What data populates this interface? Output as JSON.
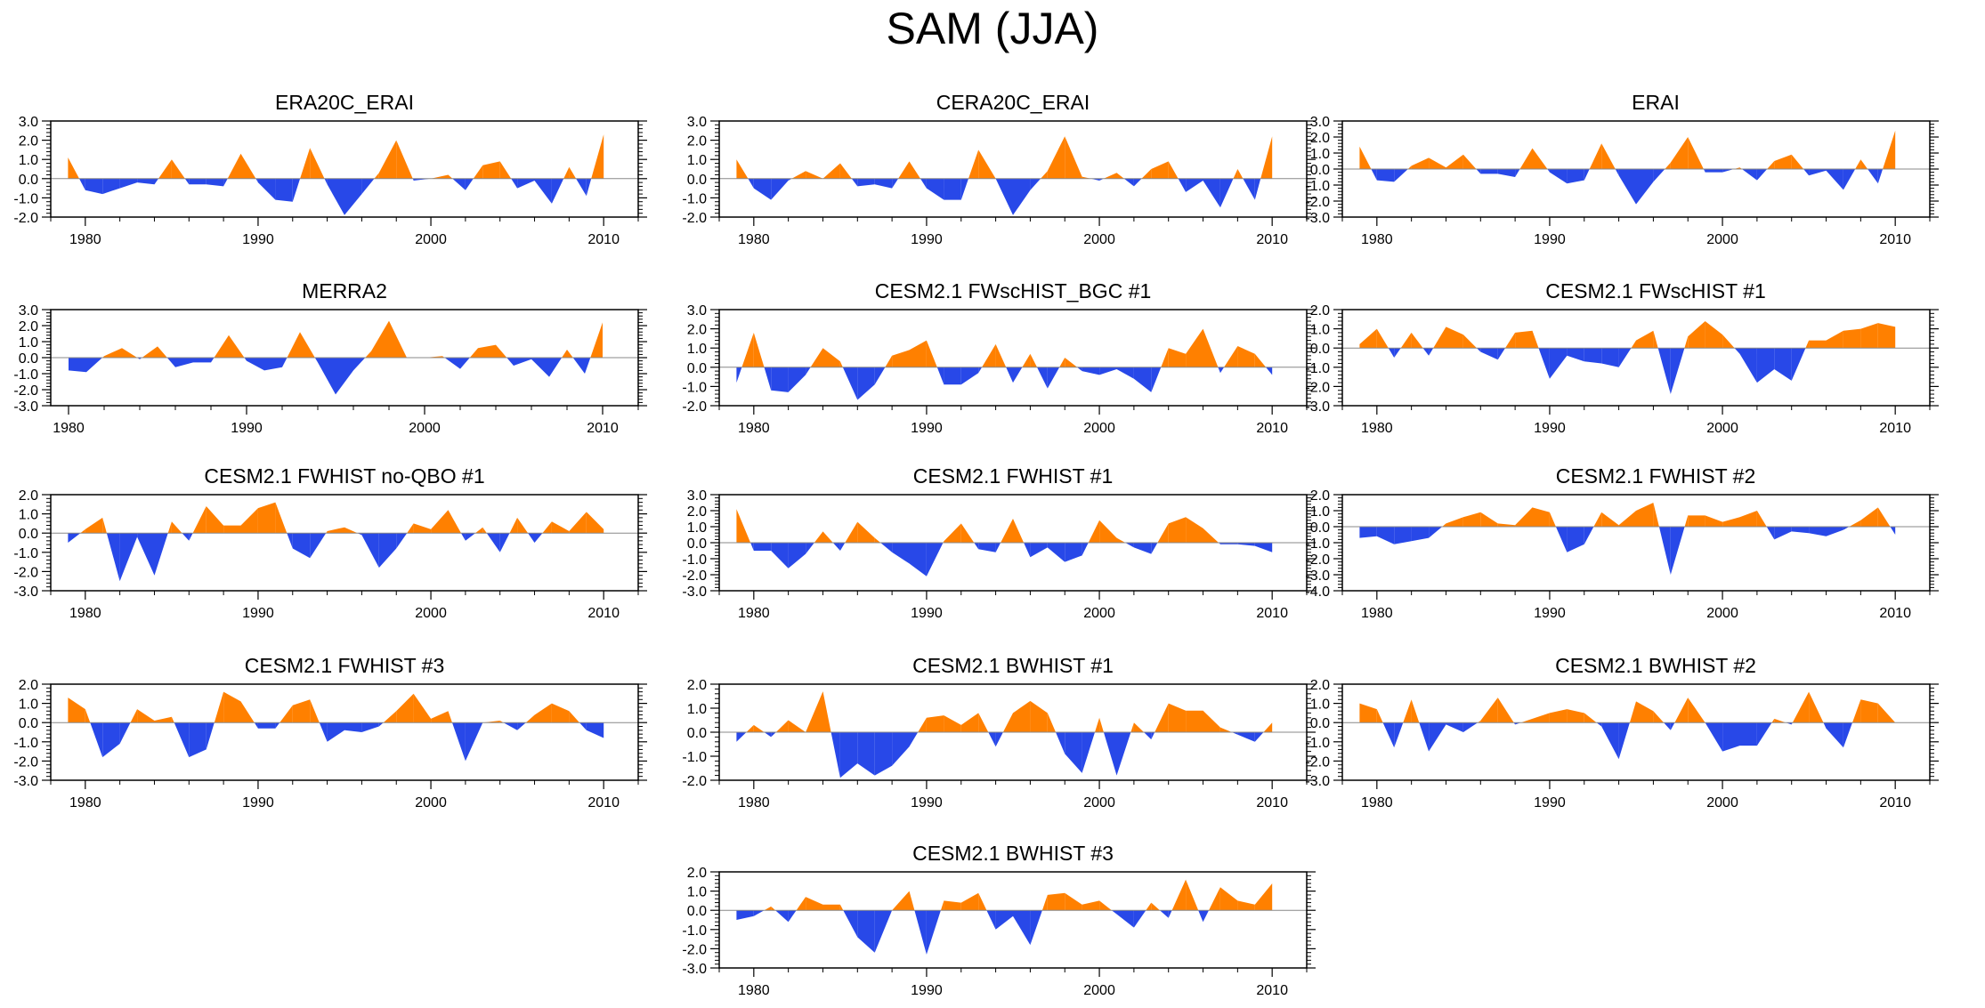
{
  "title": "SAM (JJA)",
  "colors": {
    "positive": "#ff8000",
    "negative": "#2848e8",
    "axis": "#000000"
  },
  "x_ticks": [
    1980,
    1990,
    2000,
    2010
  ],
  "chart_data": [
    {
      "type": "area",
      "title": "ERA20C_ERAI",
      "xlim": [
        1978,
        2012
      ],
      "ylim": [
        -2.0,
        3.0
      ],
      "yticks": [
        "3.0",
        "2.0",
        "1.0",
        "0.0",
        "-1.0",
        "-2.0"
      ],
      "x": [
        1979,
        1980,
        1981,
        1982,
        1983,
        1984,
        1985,
        1986,
        1987,
        1988,
        1989,
        1990,
        1991,
        1992,
        1993,
        1994,
        1995,
        1996,
        1997,
        1998,
        1999,
        2000,
        2001,
        2002,
        2003,
        2004,
        2005,
        2006,
        2007,
        2008,
        2009,
        2010
      ],
      "values": [
        1.1,
        -0.6,
        -0.8,
        -0.5,
        -0.2,
        -0.3,
        1.0,
        -0.3,
        -0.3,
        -0.4,
        1.3,
        -0.2,
        -1.1,
        -1.2,
        1.6,
        -0.3,
        -1.9,
        -0.8,
        0.3,
        2.0,
        -0.1,
        0.0,
        0.2,
        -0.6,
        0.7,
        0.9,
        -0.5,
        -0.1,
        -1.3,
        0.6,
        -0.9,
        2.3
      ]
    },
    {
      "type": "area",
      "title": "CERA20C_ERAI",
      "xlim": [
        1978,
        2012
      ],
      "ylim": [
        -2.0,
        3.0
      ],
      "yticks": [
        "3.0",
        "2.0",
        "1.0",
        "0.0",
        "-1.0",
        "-2.0"
      ],
      "x": [
        1979,
        1980,
        1981,
        1982,
        1983,
        1984,
        1985,
        1986,
        1987,
        1988,
        1989,
        1990,
        1991,
        1992,
        1993,
        1994,
        1995,
        1996,
        1997,
        1998,
        1999,
        2000,
        2001,
        2002,
        2003,
        2004,
        2005,
        2006,
        2007,
        2008,
        2009,
        2010
      ],
      "values": [
        1.0,
        -0.5,
        -1.1,
        -0.1,
        0.4,
        0.0,
        0.8,
        -0.4,
        -0.3,
        -0.5,
        0.9,
        -0.5,
        -1.1,
        -1.1,
        1.5,
        0.0,
        -1.9,
        -0.6,
        0.4,
        2.2,
        0.1,
        -0.1,
        0.3,
        -0.4,
        0.5,
        0.9,
        -0.7,
        -0.1,
        -1.5,
        0.5,
        -1.1,
        2.2
      ]
    },
    {
      "type": "area",
      "title": "ERAI",
      "xlim": [
        1978,
        2012
      ],
      "ylim": [
        -3.0,
        3.0
      ],
      "yticks": [
        "3.0",
        "2.0",
        "1.0",
        "0.0",
        "-1.0",
        "-2.0",
        "-3.0"
      ],
      "x": [
        1979,
        1980,
        1981,
        1982,
        1983,
        1984,
        1985,
        1986,
        1987,
        1988,
        1989,
        1990,
        1991,
        1992,
        1993,
        1994,
        1995,
        1996,
        1997,
        1998,
        1999,
        2000,
        2001,
        2002,
        2003,
        2004,
        2005,
        2006,
        2007,
        2008,
        2009,
        2010
      ],
      "values": [
        1.4,
        -0.7,
        -0.8,
        0.2,
        0.7,
        0.1,
        0.9,
        -0.3,
        -0.3,
        -0.5,
        1.3,
        -0.2,
        -0.9,
        -0.7,
        1.6,
        -0.4,
        -2.2,
        -0.8,
        0.4,
        2.0,
        -0.2,
        -0.2,
        0.1,
        -0.7,
        0.5,
        0.9,
        -0.4,
        -0.1,
        -1.3,
        0.6,
        -0.9,
        2.4
      ]
    },
    {
      "type": "area",
      "title": "MERRA2",
      "xlim": [
        1979,
        2012
      ],
      "ylim": [
        -3.0,
        3.0
      ],
      "yticks": [
        "3.0",
        "2.0",
        "1.0",
        "0.0",
        "-1.0",
        "-2.0",
        "-3.0"
      ],
      "x": [
        1980,
        1981,
        1982,
        1983,
        1984,
        1985,
        1986,
        1987,
        1988,
        1989,
        1990,
        1991,
        1992,
        1993,
        1994,
        1995,
        1996,
        1997,
        1998,
        1999,
        2000,
        2001,
        2002,
        2003,
        2004,
        2005,
        2006,
        2007,
        2008,
        2009,
        2010
      ],
      "values": [
        -0.8,
        -0.9,
        0.1,
        0.6,
        -0.1,
        0.7,
        -0.6,
        -0.3,
        -0.3,
        1.4,
        -0.2,
        -0.8,
        -0.6,
        1.6,
        -0.3,
        -2.3,
        -0.8,
        0.4,
        2.3,
        0.0,
        0.0,
        0.1,
        -0.7,
        0.6,
        0.8,
        -0.5,
        -0.1,
        -1.2,
        0.5,
        -1.0,
        2.2
      ]
    },
    {
      "type": "area",
      "title": "CESM2.1 FWscHIST_BGC #1",
      "xlim": [
        1978,
        2012
      ],
      "ylim": [
        -2.0,
        3.0
      ],
      "yticks": [
        "3.0",
        "2.0",
        "1.0",
        "0.0",
        "-1.0",
        "-2.0"
      ],
      "x": [
        1979,
        1980,
        1981,
        1982,
        1983,
        1984,
        1985,
        1986,
        1987,
        1988,
        1989,
        1990,
        1991,
        1992,
        1993,
        1994,
        1995,
        1996,
        1997,
        1998,
        1999,
        2000,
        2001,
        2002,
        2003,
        2004,
        2005,
        2006,
        2007,
        2008,
        2009,
        2010
      ],
      "values": [
        -0.8,
        1.8,
        -1.2,
        -1.3,
        -0.4,
        1.0,
        0.3,
        -1.7,
        -0.9,
        0.6,
        0.9,
        1.4,
        -0.9,
        -0.9,
        -0.3,
        1.2,
        -0.8,
        0.7,
        -1.1,
        0.5,
        -0.2,
        -0.4,
        -0.1,
        -0.6,
        -1.3,
        1.0,
        0.7,
        2.0,
        -0.3,
        1.1,
        0.7,
        -0.4
      ]
    },
    {
      "type": "area",
      "title": "CESM2.1 FWscHIST #1",
      "xlim": [
        1978,
        2012
      ],
      "ylim": [
        -3.0,
        2.0
      ],
      "yticks": [
        "2.0",
        "1.0",
        "0.0",
        "-1.0",
        "-2.0",
        "-3.0"
      ],
      "x": [
        1979,
        1980,
        1981,
        1982,
        1983,
        1984,
        1985,
        1986,
        1987,
        1988,
        1989,
        1990,
        1991,
        1992,
        1993,
        1994,
        1995,
        1996,
        1997,
        1998,
        1999,
        2000,
        2001,
        2002,
        2003,
        2004,
        2005,
        2006,
        2007,
        2008,
        2009,
        2010
      ],
      "values": [
        0.2,
        1.0,
        -0.5,
        0.8,
        -0.4,
        1.1,
        0.7,
        -0.2,
        -0.6,
        0.8,
        0.9,
        -1.6,
        -0.4,
        -0.7,
        -0.8,
        -1.0,
        0.4,
        0.9,
        -2.4,
        0.6,
        1.4,
        0.7,
        -0.3,
        -1.8,
        -1.1,
        -1.7,
        0.4,
        0.4,
        0.9,
        1.0,
        1.3,
        1.1
      ]
    },
    {
      "type": "area",
      "title": "CESM2.1 FWHIST no-QBO #1",
      "xlim": [
        1978,
        2012
      ],
      "ylim": [
        -3.0,
        2.0
      ],
      "yticks": [
        "2.0",
        "1.0",
        "0.0",
        "-1.0",
        "-2.0",
        "-3.0"
      ],
      "x": [
        1979,
        1980,
        1981,
        1982,
        1983,
        1984,
        1985,
        1986,
        1987,
        1988,
        1989,
        1990,
        1991,
        1992,
        1993,
        1994,
        1995,
        1996,
        1997,
        1998,
        1999,
        2000,
        2001,
        2002,
        2003,
        2004,
        2005,
        2006,
        2007,
        2008,
        2009,
        2010
      ],
      "values": [
        -0.5,
        0.2,
        0.8,
        -2.5,
        -0.2,
        -2.2,
        0.6,
        -0.4,
        1.4,
        0.4,
        0.4,
        1.3,
        1.6,
        -0.8,
        -1.3,
        0.1,
        0.3,
        -0.1,
        -1.8,
        -0.8,
        0.5,
        0.2,
        1.2,
        -0.4,
        0.3,
        -1.0,
        0.8,
        -0.5,
        0.6,
        0.1,
        1.1,
        0.2
      ]
    },
    {
      "type": "area",
      "title": "CESM2.1 FWHIST #1",
      "xlim": [
        1978,
        2012
      ],
      "ylim": [
        -3.0,
        3.0
      ],
      "yticks": [
        "3.0",
        "2.0",
        "1.0",
        "0.0",
        "-1.0",
        "-2.0",
        "-3.0"
      ],
      "x": [
        1979,
        1980,
        1981,
        1982,
        1983,
        1984,
        1985,
        1986,
        1987,
        1988,
        1989,
        1990,
        1991,
        1992,
        1993,
        1994,
        1995,
        1996,
        1997,
        1998,
        1999,
        2000,
        2001,
        2002,
        2003,
        2004,
        2005,
        2006,
        2007,
        2008,
        2009,
        2010
      ],
      "values": [
        2.1,
        -0.5,
        -0.5,
        -1.6,
        -0.7,
        0.7,
        -0.5,
        1.3,
        0.3,
        -0.6,
        -1.3,
        -2.1,
        0.1,
        1.2,
        -0.4,
        -0.6,
        1.5,
        -0.9,
        -0.3,
        -1.2,
        -0.8,
        1.4,
        0.3,
        -0.3,
        -0.7,
        1.2,
        1.6,
        0.9,
        -0.1,
        -0.1,
        -0.2,
        -0.6
      ]
    },
    {
      "type": "area",
      "title": "CESM2.1 FWHIST #2",
      "xlim": [
        1978,
        2012
      ],
      "ylim": [
        -4.0,
        2.0
      ],
      "yticks": [
        "2.0",
        "1.0",
        "0.0",
        "-1.0",
        "-2.0",
        "-3.0",
        "-4.0"
      ],
      "x": [
        1979,
        1980,
        1981,
        1982,
        1983,
        1984,
        1985,
        1986,
        1987,
        1988,
        1989,
        1990,
        1991,
        1992,
        1993,
        1994,
        1995,
        1996,
        1997,
        1998,
        1999,
        2000,
        2001,
        2002,
        2003,
        2004,
        2005,
        2006,
        2007,
        2008,
        2009,
        2010
      ],
      "values": [
        -0.7,
        -0.6,
        -1.1,
        -0.9,
        -0.7,
        0.2,
        0.6,
        0.9,
        0.2,
        0.1,
        1.2,
        0.9,
        -1.6,
        -1.1,
        0.9,
        0.1,
        1.0,
        1.5,
        -3.0,
        0.7,
        0.7,
        0.3,
        0.6,
        1.0,
        -0.8,
        -0.3,
        -0.4,
        -0.6,
        -0.2,
        0.4,
        1.2,
        -0.5
      ]
    },
    {
      "type": "area",
      "title": "CESM2.1 FWHIST #3",
      "xlim": [
        1978,
        2012
      ],
      "ylim": [
        -3.0,
        2.0
      ],
      "yticks": [
        "2.0",
        "1.0",
        "0.0",
        "-1.0",
        "-2.0",
        "-3.0"
      ],
      "x": [
        1979,
        1980,
        1981,
        1982,
        1983,
        1984,
        1985,
        1986,
        1987,
        1988,
        1989,
        1990,
        1991,
        1992,
        1993,
        1994,
        1995,
        1996,
        1997,
        1998,
        1999,
        2000,
        2001,
        2002,
        2003,
        2004,
        2005,
        2006,
        2007,
        2008,
        2009,
        2010
      ],
      "values": [
        1.3,
        0.7,
        -1.8,
        -1.1,
        0.7,
        0.1,
        0.3,
        -1.8,
        -1.4,
        1.6,
        1.1,
        -0.3,
        -0.3,
        0.9,
        1.2,
        -1.0,
        -0.4,
        -0.5,
        -0.2,
        0.6,
        1.5,
        0.2,
        0.6,
        -2.0,
        0.0,
        0.1,
        -0.4,
        0.4,
        1.0,
        0.6,
        -0.4,
        -0.8
      ]
    },
    {
      "type": "area",
      "title": "CESM2.1 BWHIST #1",
      "xlim": [
        1978,
        2012
      ],
      "ylim": [
        -2.0,
        2.0
      ],
      "yticks": [
        "2.0",
        "1.0",
        "0.0",
        "-1.0",
        "-2.0"
      ],
      "x": [
        1979,
        1980,
        1981,
        1982,
        1983,
        1984,
        1985,
        1986,
        1987,
        1988,
        1989,
        1990,
        1991,
        1992,
        1993,
        1994,
        1995,
        1996,
        1997,
        1998,
        1999,
        2000,
        2001,
        2002,
        2003,
        2004,
        2005,
        2006,
        2007,
        2008,
        2009,
        2010
      ],
      "values": [
        -0.4,
        0.3,
        -0.2,
        0.5,
        0.0,
        1.7,
        -1.9,
        -1.3,
        -1.8,
        -1.4,
        -0.6,
        0.6,
        0.7,
        0.3,
        0.8,
        -0.6,
        0.8,
        1.3,
        0.8,
        -0.9,
        -1.7,
        0.6,
        -1.8,
        0.4,
        -0.3,
        1.2,
        0.9,
        0.9,
        0.2,
        -0.1,
        -0.4,
        0.4
      ]
    },
    {
      "type": "area",
      "title": "CESM2.1 BWHIST #2",
      "xlim": [
        1978,
        2012
      ],
      "ylim": [
        -3.0,
        2.0
      ],
      "yticks": [
        "2.0",
        "1.0",
        "0.0",
        "-1.0",
        "-2.0",
        "-3.0"
      ],
      "x": [
        1979,
        1980,
        1981,
        1982,
        1983,
        1984,
        1985,
        1986,
        1987,
        1988,
        1989,
        1990,
        1991,
        1992,
        1993,
        1994,
        1995,
        1996,
        1997,
        1998,
        1999,
        2000,
        2001,
        2002,
        2003,
        2004,
        2005,
        2006,
        2007,
        2008,
        2009,
        2010
      ],
      "values": [
        1.0,
        0.7,
        -1.3,
        1.2,
        -1.5,
        -0.1,
        -0.5,
        0.1,
        1.3,
        -0.1,
        0.2,
        0.5,
        0.7,
        0.5,
        -0.2,
        -1.9,
        1.1,
        0.6,
        -0.4,
        1.3,
        0.0,
        -1.5,
        -1.2,
        -1.2,
        0.2,
        -0.1,
        1.6,
        -0.3,
        -1.3,
        1.2,
        1.0,
        0.0
      ]
    },
    {
      "type": "area",
      "title": "CESM2.1 BWHIST #3",
      "xlim": [
        1978,
        2012
      ],
      "ylim": [
        -3.0,
        2.0
      ],
      "yticks": [
        "2.0",
        "1.0",
        "0.0",
        "-1.0",
        "-2.0",
        "-3.0"
      ],
      "x": [
        1979,
        1980,
        1981,
        1982,
        1983,
        1984,
        1985,
        1986,
        1987,
        1988,
        1989,
        1990,
        1991,
        1992,
        1993,
        1994,
        1995,
        1996,
        1997,
        1998,
        1999,
        2000,
        2001,
        2002,
        2003,
        2004,
        2005,
        2006,
        2007,
        2008,
        2009,
        2010
      ],
      "values": [
        -0.5,
        -0.3,
        0.2,
        -0.6,
        0.7,
        0.3,
        0.3,
        -1.4,
        -2.2,
        0.0,
        1.0,
        -2.3,
        0.5,
        0.4,
        0.9,
        -1.0,
        -0.3,
        -1.8,
        0.8,
        0.9,
        0.3,
        0.5,
        -0.2,
        -0.9,
        0.4,
        -0.4,
        1.6,
        -0.6,
        1.2,
        0.5,
        0.3,
        1.4
      ]
    }
  ]
}
